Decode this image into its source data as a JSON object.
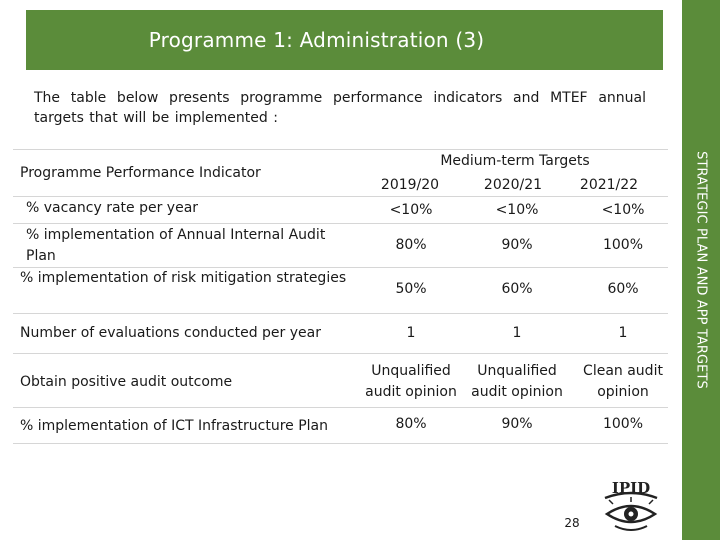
{
  "title": "Programme 1: Administration (3)",
  "side_label": "STRATEGIC PLAN AND APP TARGETS",
  "intro": "The table below presents programme performance indicators and MTEF annual targets that will be implemented :",
  "table": {
    "indicator_header": "Programme Performance Indicator",
    "group_header": "Medium-term Targets",
    "years": [
      "2019/20",
      "2020/21",
      "2021/22"
    ],
    "rows": [
      {
        "indicator": "% vacancy rate per year",
        "values": [
          "<10%",
          "<10%",
          "<10%"
        ]
      },
      {
        "indicator": "% implementation of Annual Internal Audit Plan",
        "values": [
          "80%",
          "90%",
          "100%"
        ]
      },
      {
        "indicator": "% implementation of risk mitigation strategies",
        "values": [
          "50%",
          "60%",
          "60%"
        ]
      },
      {
        "indicator": "Number of evaluations conducted per year",
        "values": [
          "1",
          "1",
          "1"
        ]
      },
      {
        "indicator": "Obtain positive audit outcome",
        "values": [
          "Unqualified audit opinion",
          "Unqualified audit opinion",
          "Clean audit opinion"
        ]
      },
      {
        "indicator": "% implementation of ICT Infrastructure Plan",
        "values": [
          "80%",
          "90%",
          "100%"
        ]
      }
    ]
  },
  "logo_text": "IPID",
  "page_number": "28",
  "colors": {
    "accent": "#5b8c3a"
  }
}
